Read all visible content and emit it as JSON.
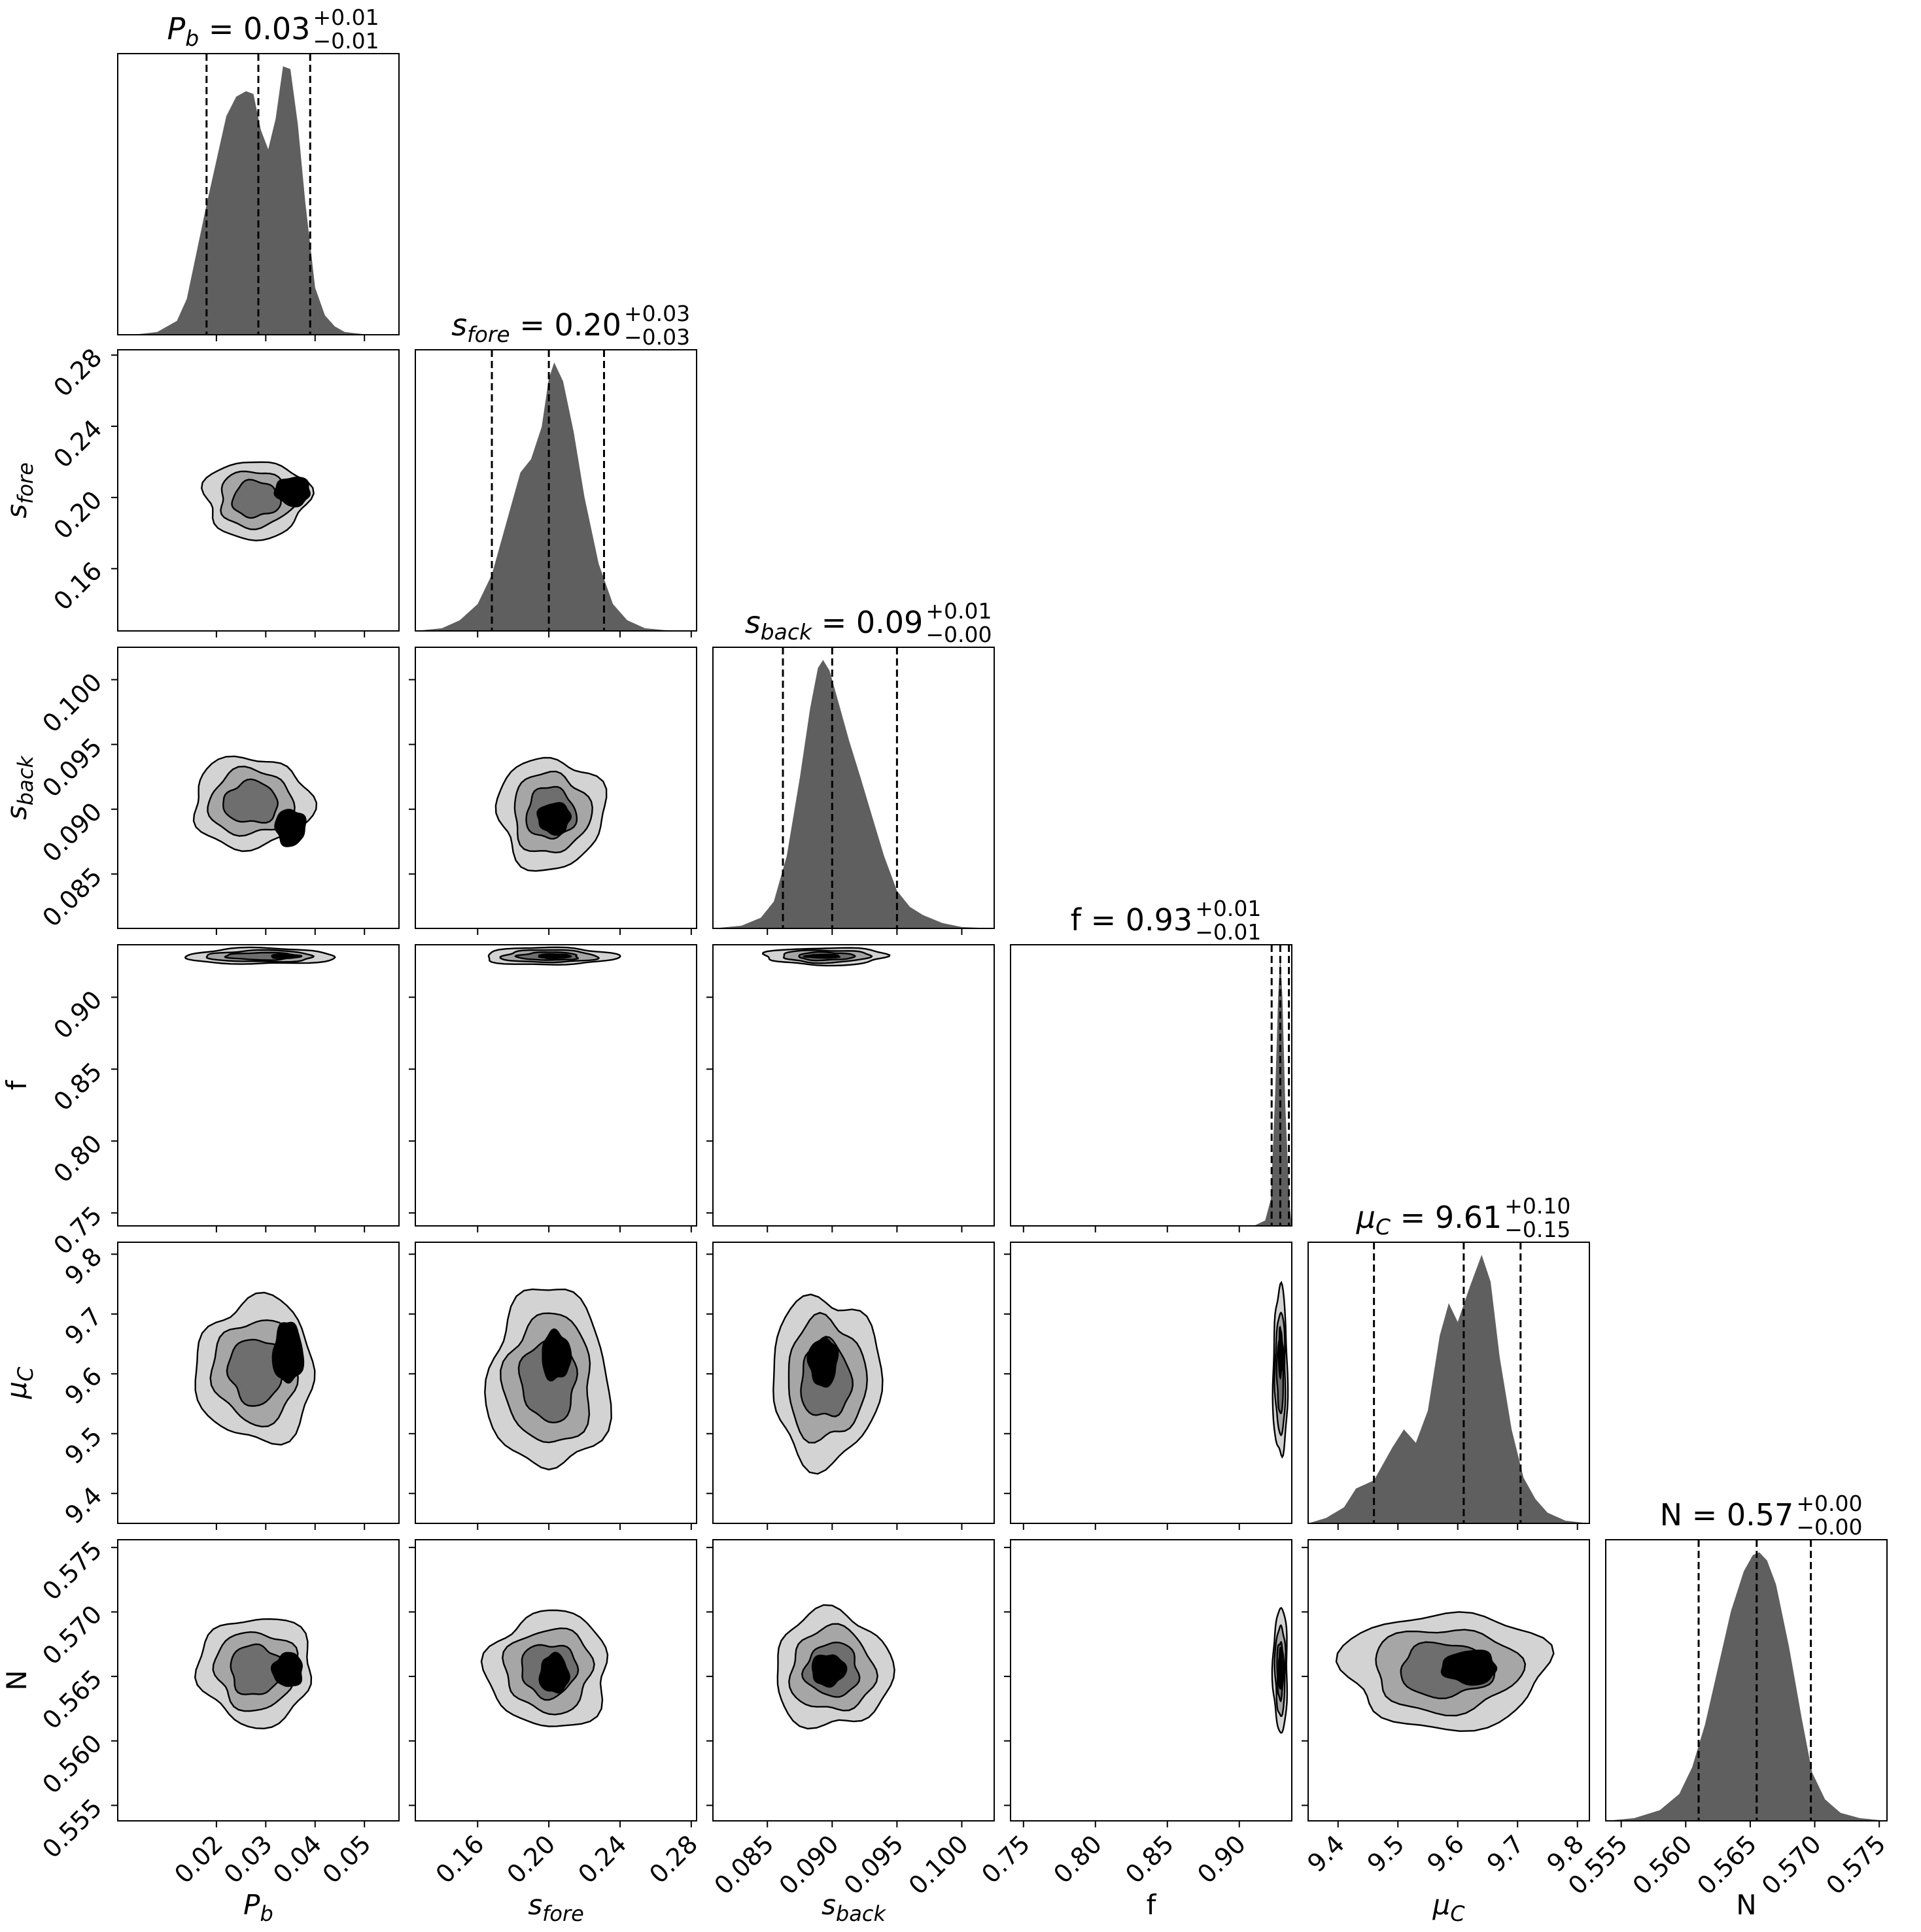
{
  "chart_data": {
    "type": "corner",
    "colors": {
      "histogram_fill": "#5f5f5f",
      "contour_fills": [
        "#d3d3d3",
        "#a6a6a6",
        "#6e6e6e",
        "#000000"
      ],
      "contour_line": "#000000",
      "quantile_line": "#000000"
    },
    "quantile_line_style": "dashed",
    "parameters": [
      {
        "key": "Pb",
        "label_main": "P",
        "label_sub": "b",
        "title_value": "0.03",
        "title_plus": "+0.01",
        "title_minus": "−0.01",
        "range": [
          0.0,
          0.057
        ],
        "ticks": [
          0.02,
          0.03,
          0.04,
          0.05
        ],
        "tick_labels": [
          "0.02",
          "0.03",
          "0.04",
          "0.05"
        ],
        "quantiles": [
          0.018,
          0.0285,
          0.039
        ],
        "histogram": {
          "x": [
            0.0,
            0.004,
            0.008,
            0.012,
            0.014,
            0.016,
            0.018,
            0.02,
            0.022,
            0.024,
            0.026,
            0.0275,
            0.029,
            0.0305,
            0.032,
            0.0335,
            0.035,
            0.0365,
            0.038,
            0.04,
            0.042,
            0.044,
            0.046,
            0.05,
            0.057
          ],
          "density": [
            0.0,
            0.002,
            0.01,
            0.05,
            0.13,
            0.3,
            0.47,
            0.63,
            0.79,
            0.86,
            0.88,
            0.87,
            0.74,
            0.67,
            0.78,
            0.97,
            0.96,
            0.76,
            0.48,
            0.17,
            0.07,
            0.03,
            0.01,
            0.002,
            0.0
          ]
        }
      },
      {
        "key": "sfore",
        "label_main": "s",
        "label_sub": "fore",
        "title_value": "0.20",
        "title_plus": "+0.03",
        "title_minus": "−0.03",
        "range": [
          0.125,
          0.283
        ],
        "ticks": [
          0.16,
          0.2,
          0.24,
          0.28
        ],
        "tick_labels": [
          "0.16",
          "0.20",
          "0.24",
          "0.28"
        ],
        "quantiles": [
          0.168,
          0.2,
          0.231
        ],
        "histogram": {
          "x": [
            0.125,
            0.14,
            0.15,
            0.16,
            0.168,
            0.176,
            0.184,
            0.19,
            0.196,
            0.2,
            0.203,
            0.208,
            0.214,
            0.22,
            0.228,
            0.236,
            0.244,
            0.254,
            0.265,
            0.283
          ],
          "density": [
            0.0,
            0.01,
            0.04,
            0.1,
            0.21,
            0.4,
            0.59,
            0.64,
            0.76,
            0.94,
            1.0,
            0.93,
            0.74,
            0.5,
            0.25,
            0.1,
            0.04,
            0.01,
            0.003,
            0.0
          ]
        }
      },
      {
        "key": "sback",
        "label_main": "s",
        "label_sub": "back",
        "title_value": "0.09",
        "title_plus": "+0.01",
        "title_minus": "−0.00",
        "range": [
          0.0808,
          0.1025
        ],
        "ticks": [
          0.085,
          0.09,
          0.095,
          0.1
        ],
        "tick_labels": [
          "0.085",
          "0.090",
          "0.095",
          "0.100"
        ],
        "quantiles": [
          0.0862,
          0.09,
          0.095
        ],
        "histogram": {
          "x": [
            0.0808,
            0.083,
            0.0845,
            0.0855,
            0.0865,
            0.0875,
            0.0883,
            0.0889,
            0.0893,
            0.0898,
            0.0905,
            0.0913,
            0.0922,
            0.093,
            0.094,
            0.095,
            0.096,
            0.097,
            0.0985,
            0.1,
            0.1025
          ],
          "density": [
            0.0,
            0.01,
            0.04,
            0.1,
            0.27,
            0.56,
            0.82,
            0.97,
            1.0,
            0.96,
            0.84,
            0.7,
            0.56,
            0.43,
            0.27,
            0.14,
            0.08,
            0.05,
            0.02,
            0.005,
            0.0
          ]
        }
      },
      {
        "key": "f",
        "label_main": "f",
        "label_sub": "",
        "title_value": "0.93",
        "title_plus": "+0.01",
        "title_minus": "−0.01",
        "range": [
          0.741,
          0.9365
        ],
        "ticks": [
          0.75,
          0.8,
          0.85,
          0.9
        ],
        "tick_labels": [
          "0.75",
          "0.80",
          "0.85",
          "0.90"
        ],
        "quantiles": [
          0.9225,
          0.9285,
          0.9345
        ],
        "histogram": {
          "x": [
            0.741,
            0.91,
            0.918,
            0.922,
            0.925,
            0.927,
            0.9285,
            0.93,
            0.932,
            0.935,
            0.9365
          ],
          "density": [
            0.0,
            0.0,
            0.02,
            0.1,
            0.5,
            0.85,
            1.0,
            0.85,
            0.45,
            0.08,
            0.0
          ]
        }
      },
      {
        "key": "muC",
        "label_main": "μ",
        "label_sub": "C",
        "title_value": "9.61",
        "title_plus": "+0.10",
        "title_minus": "−0.15",
        "range": [
          9.35,
          9.82
        ],
        "ticks": [
          9.4,
          9.5,
          9.6,
          9.7,
          9.8
        ],
        "tick_labels": [
          "9.4",
          "9.5",
          "9.6",
          "9.7",
          "9.8"
        ],
        "quantiles": [
          9.46,
          9.61,
          9.705
        ],
        "histogram": {
          "x": [
            9.35,
            9.38,
            9.41,
            9.43,
            9.46,
            9.49,
            9.51,
            9.53,
            9.55,
            9.57,
            9.585,
            9.6,
            9.62,
            9.64,
            9.655,
            9.67,
            9.69,
            9.71,
            9.73,
            9.75,
            9.78,
            9.82
          ],
          "density": [
            0.0,
            0.02,
            0.06,
            0.13,
            0.16,
            0.28,
            0.35,
            0.3,
            0.42,
            0.7,
            0.82,
            0.75,
            0.88,
            1.0,
            0.9,
            0.62,
            0.35,
            0.17,
            0.09,
            0.04,
            0.01,
            0.0
          ]
        }
      },
      {
        "key": "N",
        "label_main": "N",
        "label_sub": "",
        "title_value": "0.57",
        "title_plus": "+0.00",
        "title_minus": "−0.00",
        "range": [
          0.5538,
          0.5756
        ],
        "ticks": [
          0.555,
          0.56,
          0.565,
          0.57,
          0.575
        ],
        "tick_labels": [
          "0.555",
          "0.560",
          "0.565",
          "0.570",
          "0.575"
        ],
        "quantiles": [
          0.561,
          0.5655,
          0.5697
        ],
        "histogram": {
          "x": [
            0.5538,
            0.556,
            0.558,
            0.5595,
            0.5605,
            0.5615,
            0.5625,
            0.5635,
            0.5645,
            0.5652,
            0.5657,
            0.5663,
            0.567,
            0.568,
            0.569,
            0.5698,
            0.5708,
            0.572,
            0.5735,
            0.5756
          ],
          "density": [
            0.0,
            0.01,
            0.04,
            0.1,
            0.2,
            0.36,
            0.57,
            0.78,
            0.93,
            0.99,
            1.0,
            0.97,
            0.88,
            0.65,
            0.38,
            0.18,
            0.08,
            0.03,
            0.01,
            0.0
          ]
        }
      }
    ],
    "pair_contours": [
      {
        "x": "Pb",
        "y": "sfore",
        "blobs": [
          {
            "cx": 0.028,
            "cy": 0.199,
            "sx": 0.0105,
            "sy": 0.022
          },
          {
            "cx": 0.0355,
            "cy": 0.2035,
            "sx": 0.0035,
            "sy": 0.008
          }
        ]
      },
      {
        "x": "Pb",
        "y": "sback",
        "blobs": [
          {
            "cx": 0.027,
            "cy": 0.0905,
            "sx": 0.012,
            "sy": 0.0035
          },
          {
            "cx": 0.035,
            "cy": 0.0886,
            "sx": 0.003,
            "sy": 0.0014
          }
        ]
      },
      {
        "x": "Pb",
        "y": "f",
        "blobs": [
          {
            "cx": 0.029,
            "cy": 0.9285,
            "sx": 0.015,
            "sy": 0.0055
          },
          {
            "cx": 0.034,
            "cy": 0.9285,
            "sx": 0.003,
            "sy": 0.0014
          }
        ]
      },
      {
        "x": "Pb",
        "y": "muC",
        "blobs": [
          {
            "cx": 0.028,
            "cy": 9.605,
            "sx": 0.012,
            "sy": 0.12
          },
          {
            "cx": 0.0345,
            "cy": 9.635,
            "sx": 0.003,
            "sy": 0.05
          }
        ]
      },
      {
        "x": "Pb",
        "y": "N",
        "blobs": [
          {
            "cx": 0.028,
            "cy": 0.5655,
            "sx": 0.0115,
            "sy": 0.0042
          },
          {
            "cx": 0.0345,
            "cy": 0.5655,
            "sx": 0.003,
            "sy": 0.0013
          }
        ]
      },
      {
        "x": "sfore",
        "y": "sback",
        "blobs": [
          {
            "cx": 0.201,
            "cy": 0.0897,
            "sx": 0.03,
            "sy": 0.0043
          },
          {
            "cx": 0.203,
            "cy": 0.0893,
            "sx": 0.009,
            "sy": 0.0012
          }
        ]
      },
      {
        "x": "sfore",
        "y": "f",
        "blobs": [
          {
            "cx": 0.2,
            "cy": 0.9285,
            "sx": 0.037,
            "sy": 0.006
          },
          {
            "cx": 0.203,
            "cy": 0.9285,
            "sx": 0.009,
            "sy": 0.0015
          }
        ]
      },
      {
        "x": "sfore",
        "y": "muC",
        "blobs": [
          {
            "cx": 0.2,
            "cy": 9.59,
            "sx": 0.034,
            "sy": 0.15
          },
          {
            "cx": 0.204,
            "cy": 9.63,
            "sx": 0.008,
            "sy": 0.04
          }
        ]
      },
      {
        "x": "sfore",
        "y": "N",
        "blobs": [
          {
            "cx": 0.2,
            "cy": 0.5655,
            "sx": 0.034,
            "sy": 0.0045
          },
          {
            "cx": 0.203,
            "cy": 0.5652,
            "sx": 0.008,
            "sy": 0.0015
          }
        ]
      },
      {
        "x": "sback",
        "y": "f",
        "blobs": [
          {
            "cx": 0.0895,
            "cy": 0.9285,
            "sx": 0.0047,
            "sy": 0.006
          },
          {
            "cx": 0.0893,
            "cy": 0.9285,
            "sx": 0.0013,
            "sy": 0.0012
          }
        ]
      },
      {
        "x": "sback",
        "y": "muC",
        "blobs": [
          {
            "cx": 0.0895,
            "cy": 9.59,
            "sx": 0.0042,
            "sy": 0.14
          },
          {
            "cx": 0.0893,
            "cy": 9.62,
            "sx": 0.0011,
            "sy": 0.04
          }
        ]
      },
      {
        "x": "sback",
        "y": "N",
        "blobs": [
          {
            "cx": 0.09,
            "cy": 0.5655,
            "sx": 0.0045,
            "sy": 0.0045
          },
          {
            "cx": 0.0897,
            "cy": 0.5655,
            "sx": 0.0013,
            "sy": 0.0012
          }
        ]
      },
      {
        "x": "f",
        "y": "muC",
        "blobs": [
          {
            "cx": 0.9285,
            "cy": 9.6,
            "sx": 0.005,
            "sy": 0.14
          },
          {
            "cx": 0.9287,
            "cy": 9.635,
            "sx": 0.0013,
            "sy": 0.04
          }
        ]
      },
      {
        "x": "f",
        "y": "N",
        "blobs": [
          {
            "cx": 0.9285,
            "cy": 0.5655,
            "sx": 0.005,
            "sy": 0.0048
          },
          {
            "cx": 0.9287,
            "cy": 0.5655,
            "sx": 0.0013,
            "sy": 0.0016
          }
        ]
      },
      {
        "x": "muC",
        "y": "N",
        "blobs": [
          {
            "cx": 9.58,
            "cy": 0.5655,
            "sx": 0.17,
            "sy": 0.0045
          },
          {
            "cx": 9.62,
            "cy": 0.5657,
            "sx": 0.045,
            "sy": 0.0013
          }
        ]
      }
    ]
  }
}
